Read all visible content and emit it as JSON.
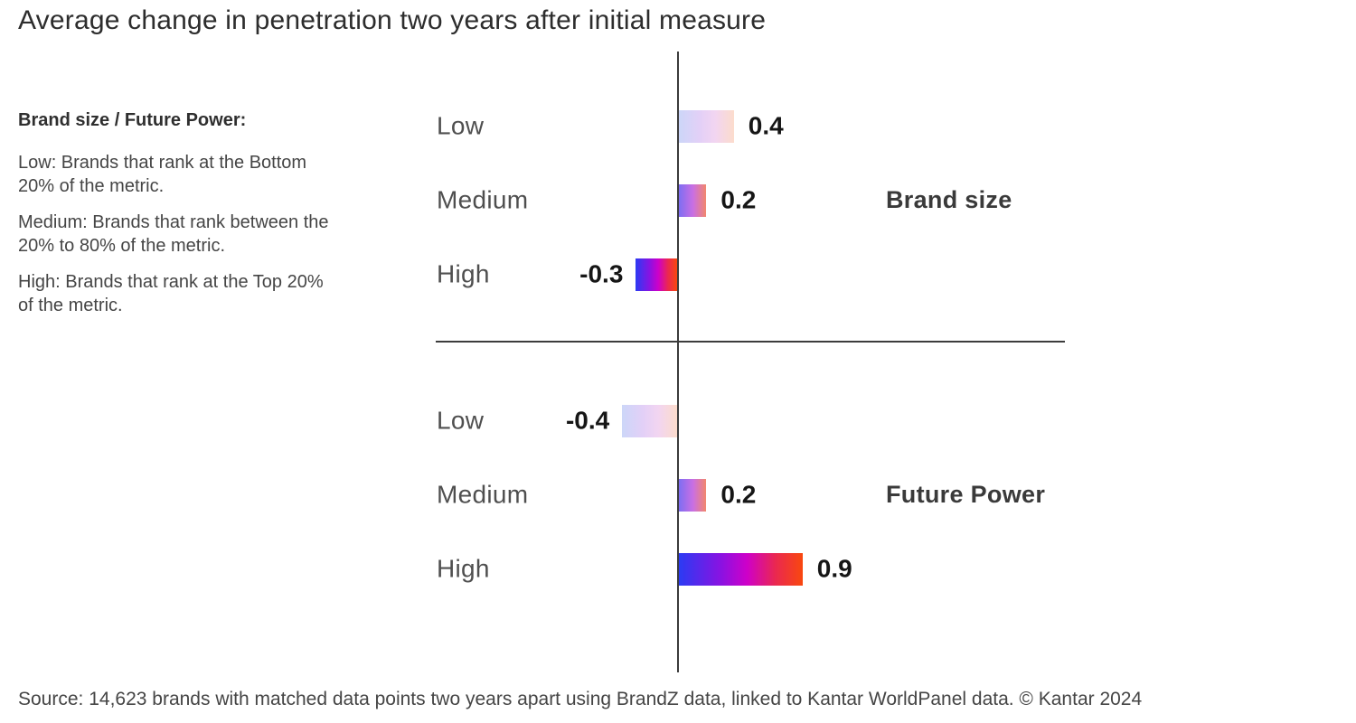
{
  "title": "Average change in penetration two years after initial measure",
  "legend": {
    "heading": "Brand size / Future Power:",
    "items": [
      {
        "lines": [
          "Low: Brands that rank at the Bottom",
          "20% of the metric."
        ]
      },
      {
        "lines": [
          "Medium: Brands that rank between the",
          "20% to 80% of the metric."
        ]
      },
      {
        "lines": [
          "High: Brands that rank at the Top 20%",
          "of the metric."
        ]
      }
    ]
  },
  "chart_data": {
    "type": "bar",
    "orientation": "horizontal",
    "title": "Average change in penetration two years after initial measure",
    "groups": [
      {
        "name": "Brand size",
        "categories": [
          "Low",
          "Medium",
          "High"
        ],
        "values": [
          0.4,
          0.2,
          -0.3
        ],
        "value_labels": [
          "0.4",
          "0.2",
          "-0.3"
        ]
      },
      {
        "name": "Future Power",
        "categories": [
          "Low",
          "Medium",
          "High"
        ],
        "values": [
          -0.4,
          0.2,
          0.9
        ],
        "value_labels": [
          "-0.4",
          "0.2",
          "0.9"
        ]
      }
    ],
    "axis": {
      "zero_line": true,
      "group_divider": true,
      "gridlines": false
    },
    "level_gradients": {
      "low": [
        "#ccd6f8",
        "#e3d0f7",
        "#f2d5f1",
        "#fcdccc"
      ],
      "medium": [
        "#7e6ef2",
        "#c96fe3",
        "#f2876d"
      ],
      "high": [
        "#2b3bf3",
        "#8a12e2",
        "#ce00c9",
        "#ea2850",
        "#f9480e"
      ]
    },
    "axis_color": "#3c3c3c",
    "value_label_color": "#161616"
  },
  "source": "Source: 14,623 brands with matched data points two years apart using BrandZ data, linked to Kantar WorldPanel data. © Kantar 2024"
}
